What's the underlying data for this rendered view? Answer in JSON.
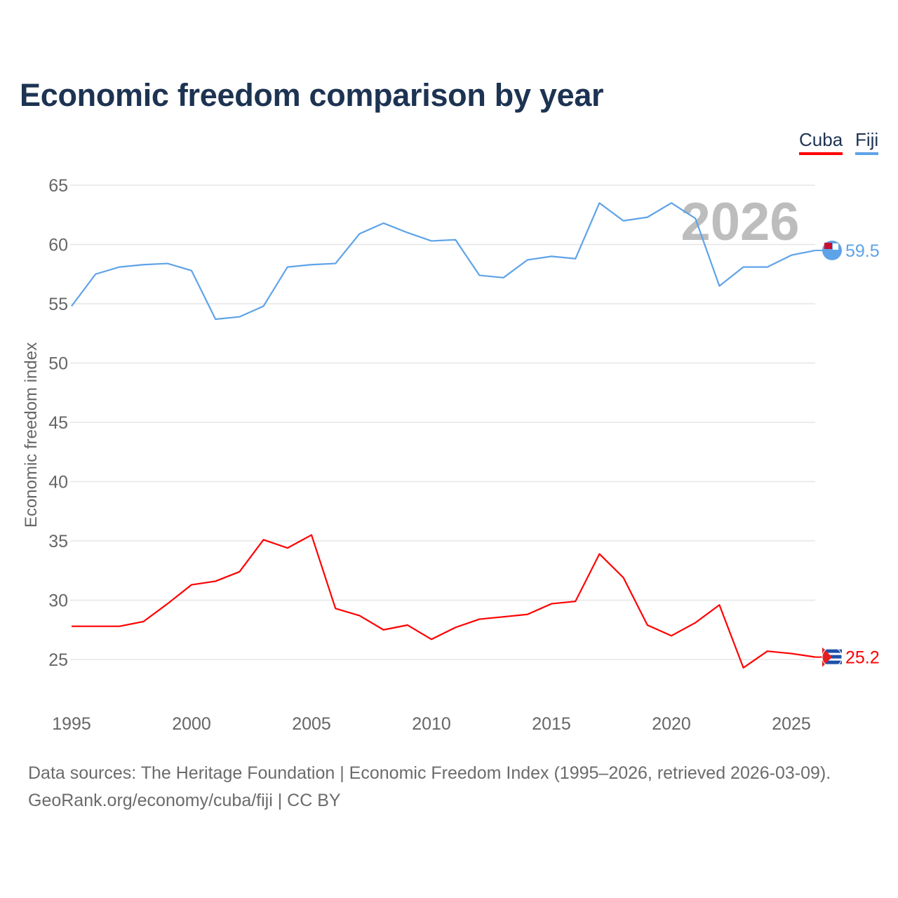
{
  "chart_data": {
    "type": "line",
    "title": "Economic freedom comparison by year",
    "ylabel": "Economic freedom index",
    "xlabel": "",
    "ylim": [
      21,
      66
    ],
    "xlim": [
      1995,
      2026
    ],
    "yticks": [
      25,
      30,
      35,
      40,
      45,
      50,
      55,
      60,
      65
    ],
    "xticks": [
      1995,
      2000,
      2005,
      2010,
      2015,
      2020,
      2025
    ],
    "grid": true,
    "legend_placement": "top-right",
    "year_overlay": "2026",
    "x": [
      1995,
      1996,
      1997,
      1998,
      1999,
      2000,
      2001,
      2002,
      2003,
      2004,
      2005,
      2006,
      2007,
      2008,
      2009,
      2010,
      2011,
      2012,
      2013,
      2014,
      2015,
      2016,
      2017,
      2018,
      2019,
      2020,
      2021,
      2022,
      2023,
      2024,
      2025,
      2026
    ],
    "series": [
      {
        "name": "Cuba",
        "color": "#ff0000",
        "end_label": "25.2",
        "values": [
          27.8,
          27.8,
          27.8,
          28.2,
          29.7,
          31.3,
          31.6,
          32.4,
          35.1,
          34.4,
          35.5,
          29.3,
          28.7,
          27.5,
          27.9,
          26.7,
          27.7,
          28.4,
          28.6,
          28.8,
          29.7,
          29.9,
          33.9,
          31.9,
          27.9,
          27.0,
          28.1,
          29.6,
          24.3,
          25.7,
          25.5,
          25.2
        ]
      },
      {
        "name": "Fiji",
        "color": "#5ea3e8",
        "end_label": "59.5",
        "values": [
          54.8,
          57.5,
          58.1,
          58.3,
          58.4,
          57.8,
          53.7,
          53.9,
          54.8,
          58.1,
          58.3,
          58.4,
          60.9,
          61.8,
          61.0,
          60.3,
          60.4,
          57.4,
          57.2,
          58.7,
          59.0,
          58.8,
          63.5,
          62.0,
          62.3,
          63.5,
          62.2,
          56.5,
          58.1,
          58.1,
          59.1,
          59.5
        ]
      }
    ]
  },
  "footer": {
    "line1": "Data sources: The Heritage Foundation | Economic Freedom Index (1995–2026, retrieved 2026-03-09).",
    "line2": "GeoRank.org/economy/cuba/fiji | CC BY"
  }
}
